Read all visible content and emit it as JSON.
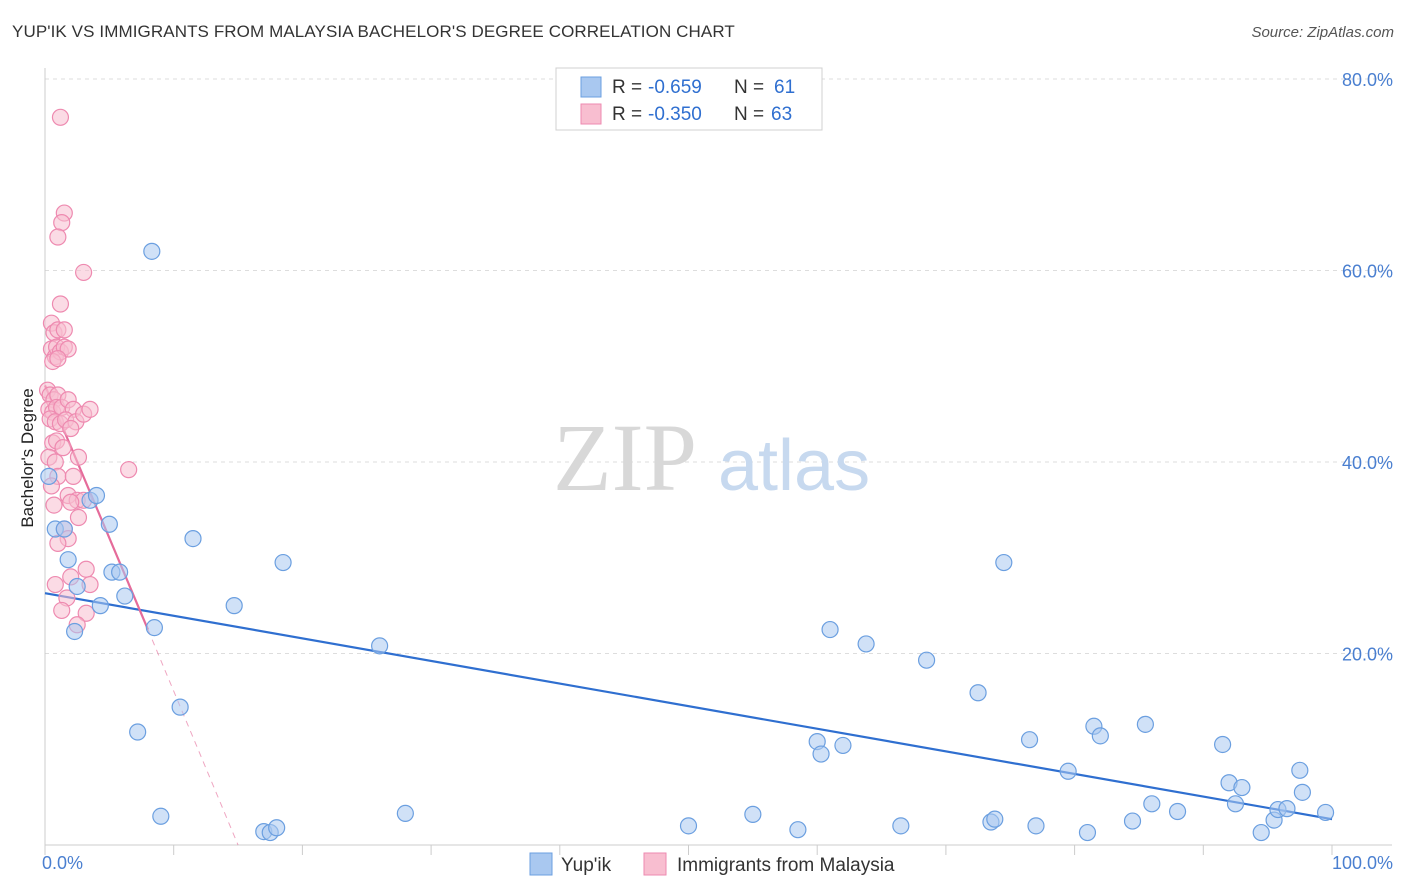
{
  "title": "YUP'IK VS IMMIGRANTS FROM MALAYSIA BACHELOR'S DEGREE CORRELATION CHART",
  "source": "Source: ZipAtlas.com",
  "watermark": {
    "zip": "ZIP",
    "atlas": "atlas"
  },
  "chart_data": {
    "type": "scatter",
    "title": "YUP'IK VS IMMIGRANTS FROM MALAYSIA BACHELOR'S DEGREE CORRELATION CHART",
    "xlabel": "",
    "ylabel": "Bachelor's Degree",
    "xlim": [
      0,
      100
    ],
    "ylim": [
      0,
      80
    ],
    "y_ticks": [
      20,
      40,
      60,
      80
    ],
    "y_tick_labels": [
      "20.0%",
      "40.0%",
      "60.0%",
      "80.0%"
    ],
    "x_tick_labels": [
      "0.0%",
      "100.0%"
    ],
    "legend_stats": [
      {
        "r_label": "R =",
        "r": "-0.659",
        "n_label": "N =",
        "n": "61"
      },
      {
        "r_label": "R =",
        "r": "-0.350",
        "n_label": "N =",
        "n": "63"
      }
    ],
    "series": [
      {
        "name": "Yup'ik",
        "color": "#a9c8f0",
        "stroke": "#6b9fe0",
        "trend_color": "#2f6fd0",
        "trend": {
          "x0": 0,
          "y0": 26.3,
          "x1": 100,
          "y1": 2.7
        },
        "points": [
          [
            8.3,
            62.0
          ],
          [
            0.3,
            38.5
          ],
          [
            0.8,
            33.0
          ],
          [
            1.5,
            33.0
          ],
          [
            3.5,
            36.0
          ],
          [
            4.0,
            36.5
          ],
          [
            5.0,
            33.5
          ],
          [
            1.8,
            29.8
          ],
          [
            2.5,
            27.0
          ],
          [
            5.2,
            28.5
          ],
          [
            5.8,
            28.5
          ],
          [
            6.2,
            26.0
          ],
          [
            4.3,
            25.0
          ],
          [
            2.3,
            22.3
          ],
          [
            8.5,
            22.7
          ],
          [
            11.5,
            32.0
          ],
          [
            14.7,
            25.0
          ],
          [
            18.5,
            29.5
          ],
          [
            26.0,
            20.8
          ],
          [
            7.2,
            11.8
          ],
          [
            10.5,
            14.4
          ],
          [
            9.0,
            3.0
          ],
          [
            17.0,
            1.4
          ],
          [
            17.5,
            1.3
          ],
          [
            18.0,
            1.8
          ],
          [
            28.0,
            3.3
          ],
          [
            50.0,
            2.0
          ],
          [
            55.0,
            3.2
          ],
          [
            58.5,
            1.6
          ],
          [
            60.0,
            10.8
          ],
          [
            60.3,
            9.5
          ],
          [
            61.0,
            22.5
          ],
          [
            62.0,
            10.4
          ],
          [
            63.8,
            21.0
          ],
          [
            66.5,
            2.0
          ],
          [
            68.5,
            19.3
          ],
          [
            72.5,
            15.9
          ],
          [
            73.5,
            2.4
          ],
          [
            73.8,
            2.7
          ],
          [
            74.5,
            29.5
          ],
          [
            76.5,
            11.0
          ],
          [
            77.0,
            2.0
          ],
          [
            79.5,
            7.7
          ],
          [
            81.0,
            1.3
          ],
          [
            81.5,
            12.4
          ],
          [
            82.0,
            11.4
          ],
          [
            84.5,
            2.5
          ],
          [
            85.5,
            12.6
          ],
          [
            86.0,
            4.3
          ],
          [
            88.0,
            3.5
          ],
          [
            91.5,
            10.5
          ],
          [
            92.0,
            6.5
          ],
          [
            92.5,
            4.3
          ],
          [
            93.0,
            6.0
          ],
          [
            94.5,
            1.3
          ],
          [
            95.5,
            2.6
          ],
          [
            95.8,
            3.7
          ],
          [
            96.5,
            3.8
          ],
          [
            97.5,
            7.8
          ],
          [
            97.7,
            5.5
          ],
          [
            99.5,
            3.4
          ]
        ]
      },
      {
        "name": "Immigrants from Malaysia",
        "color": "#f8bed0",
        "stroke": "#ee8ab0",
        "trend_color": "#e56b9a",
        "trend": {
          "x0": 0,
          "y0": 48.0,
          "x1": 8.0,
          "y1": 22.5
        },
        "trend_dashed": {
          "x0": 8.0,
          "y0": 22.5,
          "x1": 15.0,
          "y1": 0.0
        },
        "points": [
          [
            1.2,
            76.0
          ],
          [
            1.5,
            66.0
          ],
          [
            1.3,
            65.0
          ],
          [
            1.0,
            63.5
          ],
          [
            3.0,
            59.8
          ],
          [
            1.2,
            56.5
          ],
          [
            0.5,
            54.5
          ],
          [
            0.7,
            53.5
          ],
          [
            1.0,
            53.8
          ],
          [
            1.5,
            53.8
          ],
          [
            0.5,
            51.8
          ],
          [
            0.8,
            51.0
          ],
          [
            0.9,
            52.0
          ],
          [
            1.2,
            51.5
          ],
          [
            1.5,
            52.0
          ],
          [
            1.8,
            51.8
          ],
          [
            0.6,
            50.5
          ],
          [
            1.0,
            50.8
          ],
          [
            0.2,
            47.5
          ],
          [
            0.4,
            47.0
          ],
          [
            0.7,
            46.5
          ],
          [
            1.0,
            47.0
          ],
          [
            0.3,
            45.5
          ],
          [
            0.6,
            45.2
          ],
          [
            0.9,
            45.7
          ],
          [
            1.3,
            45.7
          ],
          [
            1.8,
            46.5
          ],
          [
            2.2,
            45.5
          ],
          [
            0.4,
            44.5
          ],
          [
            0.8,
            44.2
          ],
          [
            1.2,
            44.0
          ],
          [
            1.6,
            44.4
          ],
          [
            2.4,
            44.2
          ],
          [
            3.0,
            45.0
          ],
          [
            3.5,
            45.5
          ],
          [
            2.0,
            43.5
          ],
          [
            0.6,
            42.0
          ],
          [
            0.9,
            42.2
          ],
          [
            1.4,
            41.5
          ],
          [
            0.3,
            40.5
          ],
          [
            0.8,
            40.0
          ],
          [
            2.6,
            40.5
          ],
          [
            6.5,
            39.2
          ],
          [
            1.0,
            38.5
          ],
          [
            2.2,
            38.5
          ],
          [
            0.5,
            37.5
          ],
          [
            1.8,
            36.5
          ],
          [
            2.5,
            36.0
          ],
          [
            3.0,
            36.0
          ],
          [
            0.7,
            35.5
          ],
          [
            2.0,
            35.8
          ],
          [
            2.6,
            34.2
          ],
          [
            1.5,
            33.0
          ],
          [
            1.8,
            32.0
          ],
          [
            1.0,
            31.5
          ],
          [
            3.2,
            28.8
          ],
          [
            2.0,
            28.0
          ],
          [
            0.8,
            27.2
          ],
          [
            3.5,
            27.2
          ],
          [
            1.7,
            25.8
          ],
          [
            1.3,
            24.5
          ],
          [
            3.2,
            24.2
          ],
          [
            2.5,
            23.0
          ]
        ]
      }
    ]
  }
}
